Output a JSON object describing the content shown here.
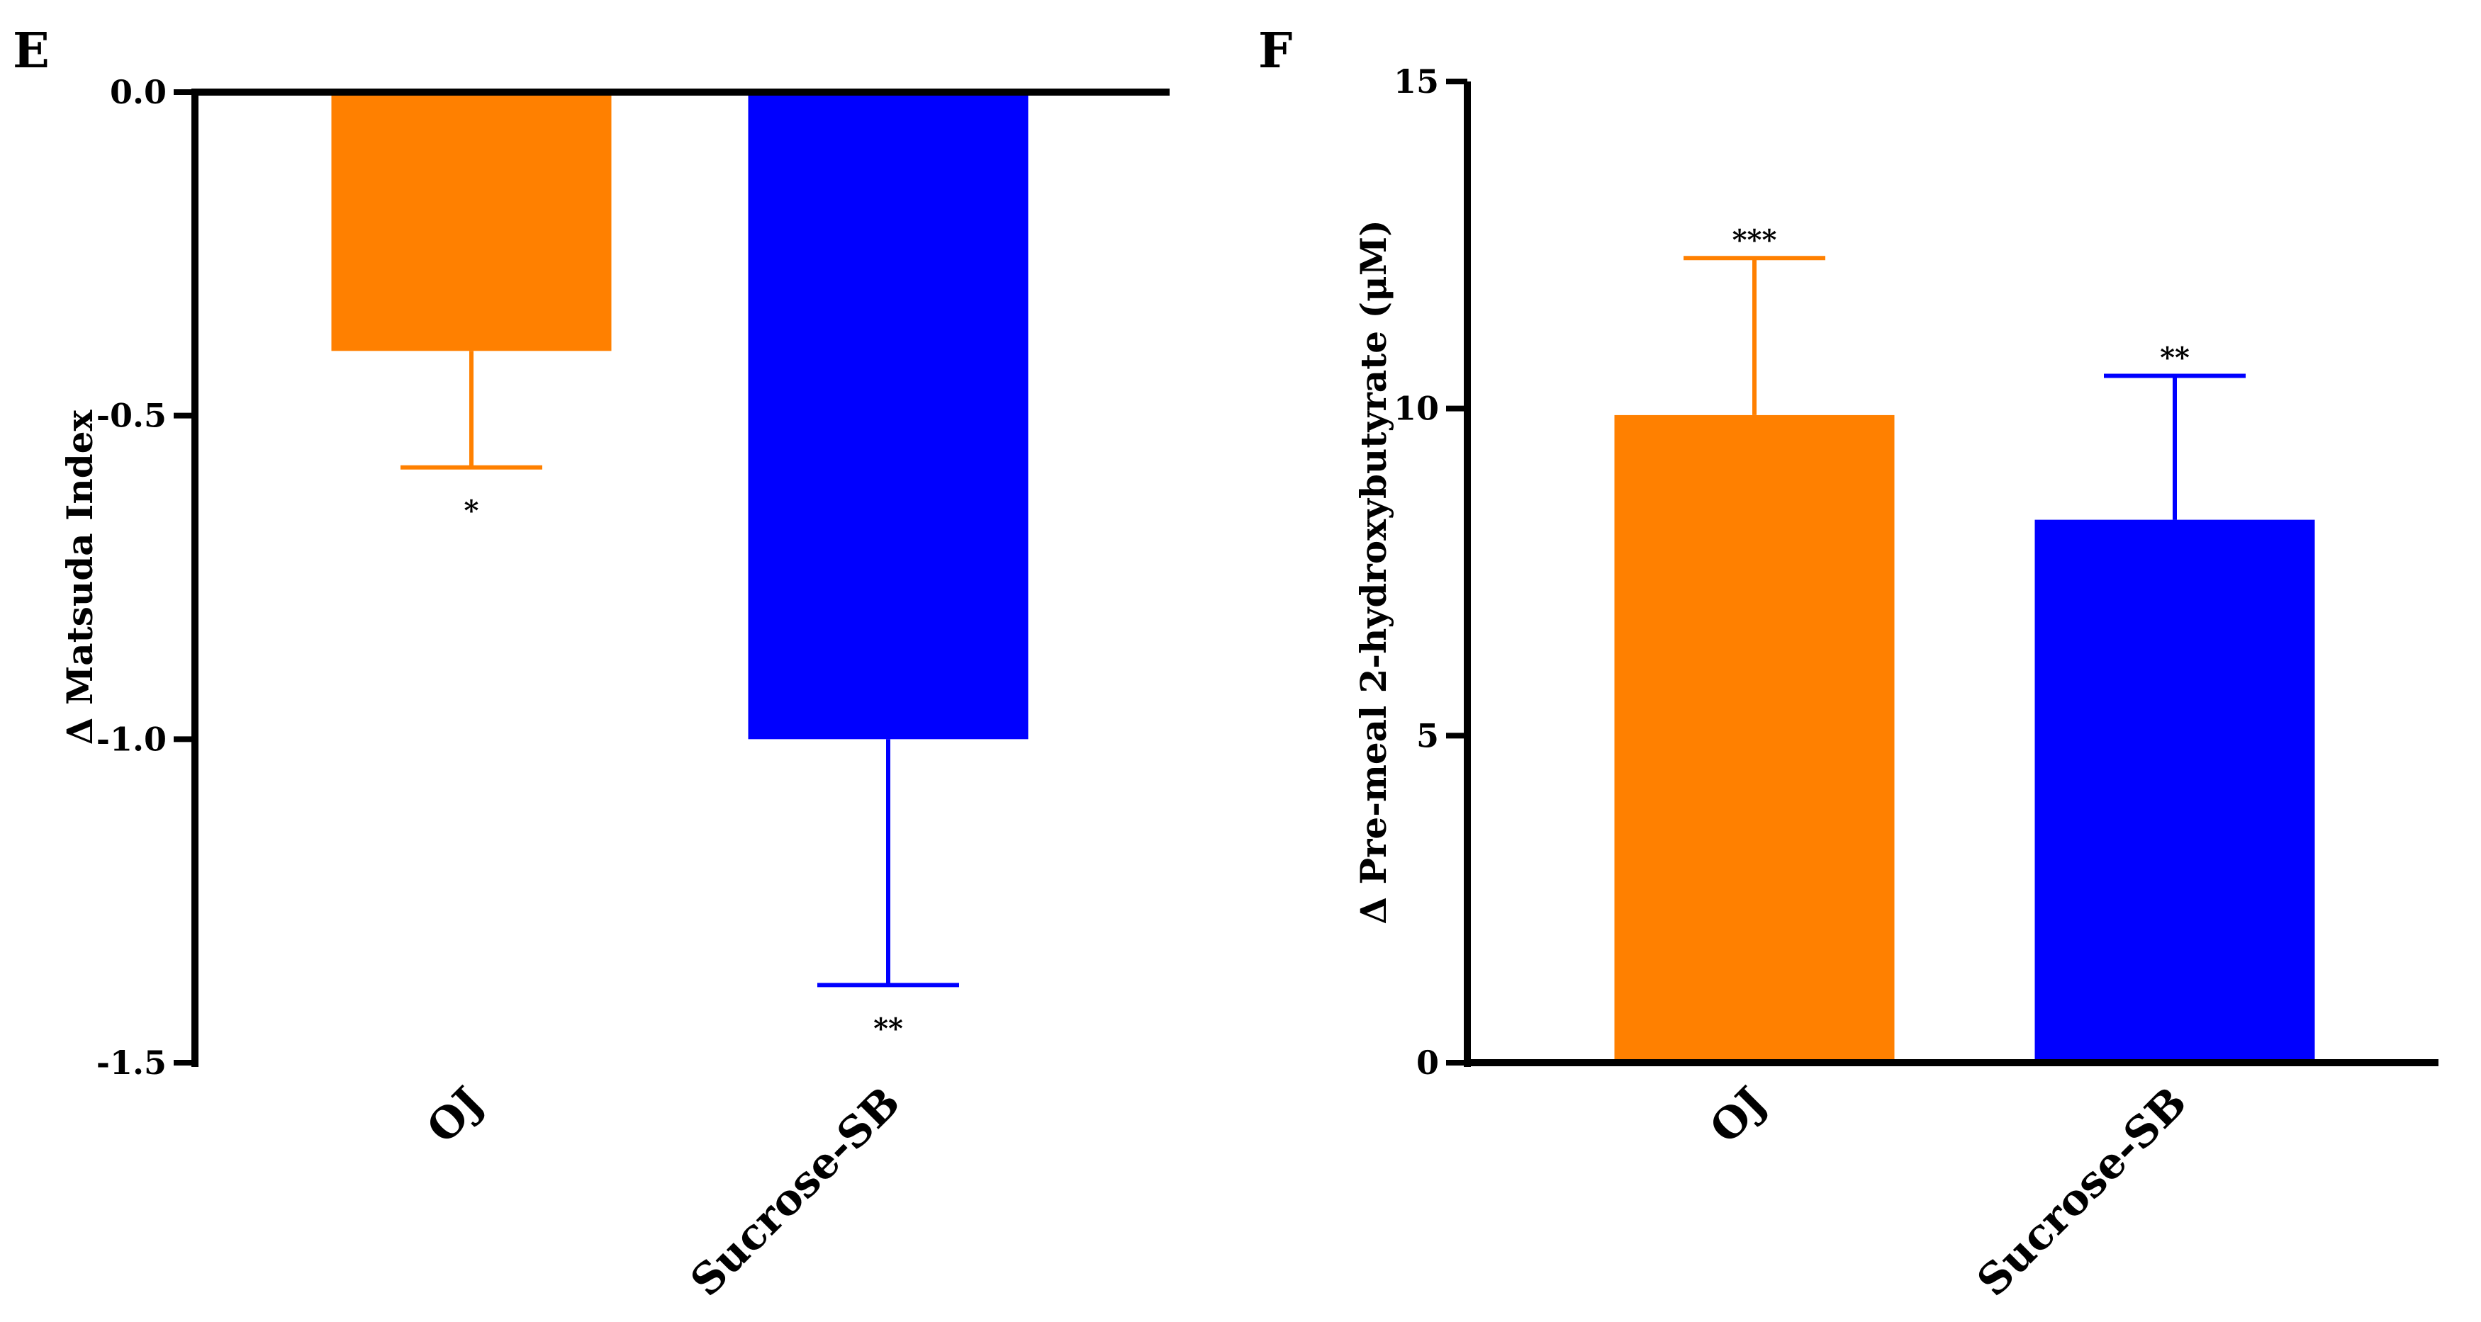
{
  "chart_data": [
    {
      "type": "bar",
      "panel_label": "E",
      "title": "",
      "xlabel": "",
      "ylabel": "Δ Matsuda Index",
      "categories": [
        "OJ",
        "Sucrose-SB"
      ],
      "values": [
        -0.4,
        -1.0
      ],
      "errors": [
        0.18,
        0.38
      ],
      "error_direction": "down",
      "significance": [
        "*",
        "**"
      ],
      "colors": [
        "#FF8000",
        "#0000FF"
      ],
      "ylim": [
        -1.5,
        0.0
      ],
      "yticks": [
        0.0,
        -0.5,
        -1.0,
        -1.5
      ],
      "ytick_labels": [
        "0.0",
        "-0.5",
        "-1.0",
        "-1.5"
      ]
    },
    {
      "type": "bar",
      "panel_label": "F",
      "title": "",
      "xlabel": "",
      "ylabel": "Δ Pre-meal 2-hydroxybutyrate (μM)",
      "categories": [
        "OJ",
        "Sucrose-SB"
      ],
      "values": [
        9.9,
        8.3
      ],
      "errors": [
        2.4,
        2.2
      ],
      "error_direction": "up",
      "significance": [
        "***",
        "**"
      ],
      "colors": [
        "#FF8000",
        "#0000FF"
      ],
      "ylim": [
        0,
        15
      ],
      "yticks": [
        0,
        5,
        10,
        15
      ],
      "ytick_labels": [
        "0",
        "5",
        "10",
        "15"
      ]
    }
  ]
}
